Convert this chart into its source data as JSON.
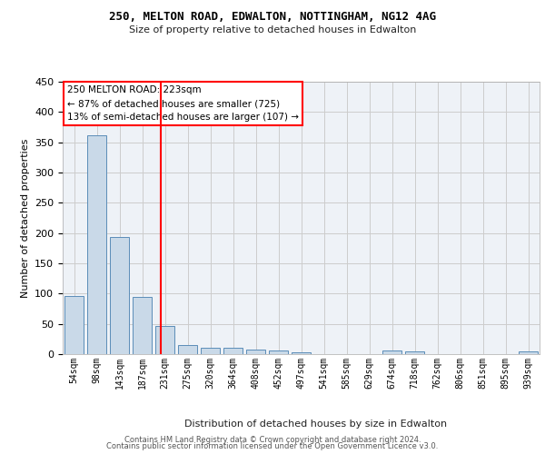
{
  "title1": "250, MELTON ROAD, EDWALTON, NOTTINGHAM, NG12 4AG",
  "title2": "Size of property relative to detached houses in Edwalton",
  "xlabel": "Distribution of detached houses by size in Edwalton",
  "ylabel": "Number of detached properties",
  "footer1": "Contains HM Land Registry data © Crown copyright and database right 2024.",
  "footer2": "Contains public sector information licensed under the Open Government Licence v3.0.",
  "annotation_title": "250 MELTON ROAD: 223sqm",
  "annotation_line1": "← 87% of detached houses are smaller (725)",
  "annotation_line2": "13% of semi-detached houses are larger (107) →",
  "bar_color": "#c9d9e8",
  "bar_edge_color": "#5b8db8",
  "grid_color": "#cccccc",
  "vline_color": "red",
  "background_color": "#eef2f7",
  "categories": [
    "54sqm",
    "98sqm",
    "143sqm",
    "187sqm",
    "231sqm",
    "275sqm",
    "320sqm",
    "364sqm",
    "408sqm",
    "452sqm",
    "497sqm",
    "541sqm",
    "585sqm",
    "629sqm",
    "674sqm",
    "718sqm",
    "762sqm",
    "806sqm",
    "851sqm",
    "895sqm",
    "939sqm"
  ],
  "values": [
    96,
    362,
    194,
    94,
    46,
    15,
    10,
    10,
    7,
    6,
    3,
    0,
    0,
    0,
    6,
    5,
    0,
    0,
    0,
    0,
    4
  ],
  "ylim": [
    0,
    450
  ],
  "yticks": [
    0,
    50,
    100,
    150,
    200,
    250,
    300,
    350,
    400,
    450
  ],
  "vline_pos": 3.82
}
